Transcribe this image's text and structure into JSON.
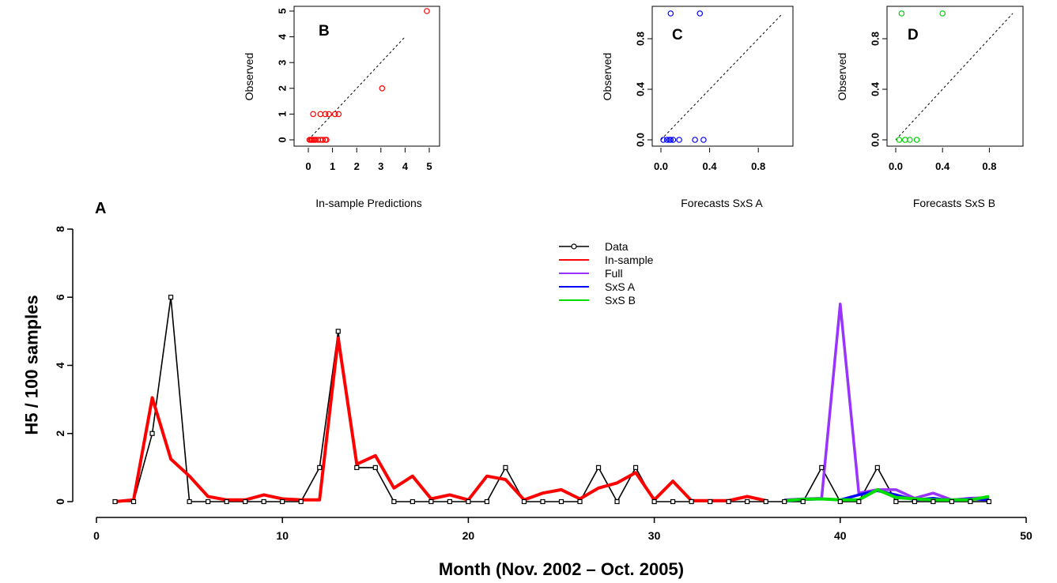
{
  "chart_data": [
    {
      "panel": "A",
      "type": "line",
      "xlabel": "Month (Nov. 2002 – Oct. 2005)",
      "ylabel": "H5 / 100 samples",
      "xlim": [
        0,
        50
      ],
      "ylim": [
        0,
        8
      ],
      "xticks": [
        0,
        10,
        20,
        30,
        40,
        50
      ],
      "yticks": [
        0,
        2,
        4,
        6,
        8
      ],
      "legend_position": "top-center",
      "series": [
        {
          "name": "Data",
          "color": "#000000",
          "style": "line-with-square-markers",
          "x": [
            1,
            2,
            3,
            4,
            5,
            6,
            7,
            8,
            9,
            10,
            11,
            12,
            13,
            14,
            15,
            16,
            17,
            18,
            19,
            20,
            21,
            22,
            23,
            24,
            25,
            26,
            27,
            28,
            29,
            30,
            31,
            32,
            33,
            34,
            35,
            36,
            37,
            38,
            39,
            40,
            41,
            42,
            43,
            44,
            45,
            46,
            47,
            48
          ],
          "y": [
            0,
            0,
            2,
            6,
            0,
            0,
            0,
            0,
            0,
            0,
            0,
            1,
            5,
            1,
            1,
            0,
            0,
            0,
            0,
            0,
            0,
            1,
            0,
            0,
            0,
            0,
            1,
            0,
            1,
            0,
            0,
            0,
            0,
            0,
            0,
            0,
            0,
            0,
            1,
            0,
            0,
            1,
            0,
            0,
            0,
            0,
            0,
            0
          ]
        },
        {
          "name": "In-sample",
          "color": "#ff0000",
          "x": [
            1,
            2,
            3,
            4,
            5,
            6,
            7,
            8,
            9,
            10,
            11,
            12,
            13,
            14,
            15,
            16,
            17,
            18,
            19,
            20,
            21,
            22,
            23,
            24,
            25,
            26,
            27,
            28,
            29,
            30,
            31,
            32,
            33,
            34,
            35,
            36
          ],
          "y": [
            0,
            0.05,
            3.05,
            1.25,
            0.75,
            0.15,
            0.05,
            0.05,
            0.2,
            0.08,
            0.05,
            0.05,
            4.8,
            1.1,
            1.35,
            0.4,
            0.75,
            0.08,
            0.2,
            0.05,
            0.75,
            0.65,
            0.05,
            0.25,
            0.35,
            0.08,
            0.4,
            0.55,
            0.85,
            0.05,
            0.6,
            0.03,
            0.03,
            0.03,
            0.15,
            0.03
          ]
        },
        {
          "name": "Full",
          "color": "#9933ff",
          "x": [
            37,
            38,
            39,
            40,
            41,
            42,
            43,
            44,
            45,
            46,
            47,
            48
          ],
          "y": [
            0.05,
            0.08,
            0.1,
            5.8,
            0.25,
            0.35,
            0.35,
            0.1,
            0.25,
            0.05,
            0.1,
            0.12
          ]
        },
        {
          "name": "SxS A",
          "color": "#0000ff",
          "x": [
            37,
            38,
            39,
            40,
            41,
            42,
            43,
            44,
            45,
            46,
            47,
            48
          ],
          "y": [
            0.02,
            0.06,
            0.08,
            0.05,
            0.2,
            0.32,
            0.2,
            0.05,
            0.1,
            0.03,
            0.08,
            0.05
          ]
        },
        {
          "name": "SxS B",
          "color": "#00dd00",
          "x": [
            37,
            38,
            39,
            40,
            41,
            42,
            43,
            44,
            45,
            46,
            47,
            48
          ],
          "y": [
            0.03,
            0.07,
            0.08,
            0.05,
            0.05,
            0.35,
            0.12,
            0.08,
            0.05,
            0.05,
            0.05,
            0.15
          ]
        }
      ]
    },
    {
      "panel": "B",
      "type": "scatter",
      "xlabel": "In-sample Predictions",
      "ylabel": "Observed",
      "xlim": [
        0,
        5
      ],
      "ylim": [
        0,
        5
      ],
      "xticks": [
        0,
        1,
        2,
        3,
        4,
        5
      ],
      "yticks": [
        0,
        1,
        2,
        3,
        4,
        5
      ],
      "diagonal": [
        0,
        4
      ],
      "color": "#ff0000",
      "x": [
        0.05,
        0.1,
        0.15,
        0.2,
        0.25,
        0.3,
        0.4,
        0.5,
        0.6,
        0.7,
        0.75,
        0.2,
        0.7,
        0.5,
        0.85,
        1.1,
        1.25,
        3.05,
        4.9
      ],
      "y": [
        0,
        0,
        0,
        0,
        0,
        0,
        0,
        0,
        0,
        0,
        0,
        1,
        1,
        1,
        1,
        1,
        1,
        2,
        5
      ]
    },
    {
      "panel": "C",
      "type": "scatter",
      "xlabel": "Forecasts SxS A",
      "ylabel": "Observed",
      "xlim": [
        0,
        1
      ],
      "ylim": [
        0,
        1
      ],
      "xticks": [
        0.0,
        0.4,
        0.8
      ],
      "yticks": [
        0.0,
        0.4,
        0.8
      ],
      "diagonal": [
        0,
        1
      ],
      "color": "#0000ff",
      "x": [
        0.02,
        0.05,
        0.07,
        0.08,
        0.1,
        0.15,
        0.28,
        0.35,
        0.08,
        0.32
      ],
      "y": [
        0,
        0,
        0,
        0,
        0,
        0,
        0,
        0,
        1,
        1
      ]
    },
    {
      "panel": "D",
      "type": "scatter",
      "xlabel": "Forecasts SxS B",
      "ylabel": "Observed",
      "xlim": [
        0,
        1
      ],
      "ylim": [
        0,
        1
      ],
      "xticks": [
        0.0,
        0.4,
        0.8
      ],
      "yticks": [
        0.0,
        0.4,
        0.8
      ],
      "diagonal": [
        0,
        1
      ],
      "color": "#00cc00",
      "x": [
        0.03,
        0.08,
        0.12,
        0.18,
        0.05,
        0.4
      ],
      "y": [
        0,
        0,
        0,
        0,
        1,
        1
      ]
    }
  ]
}
